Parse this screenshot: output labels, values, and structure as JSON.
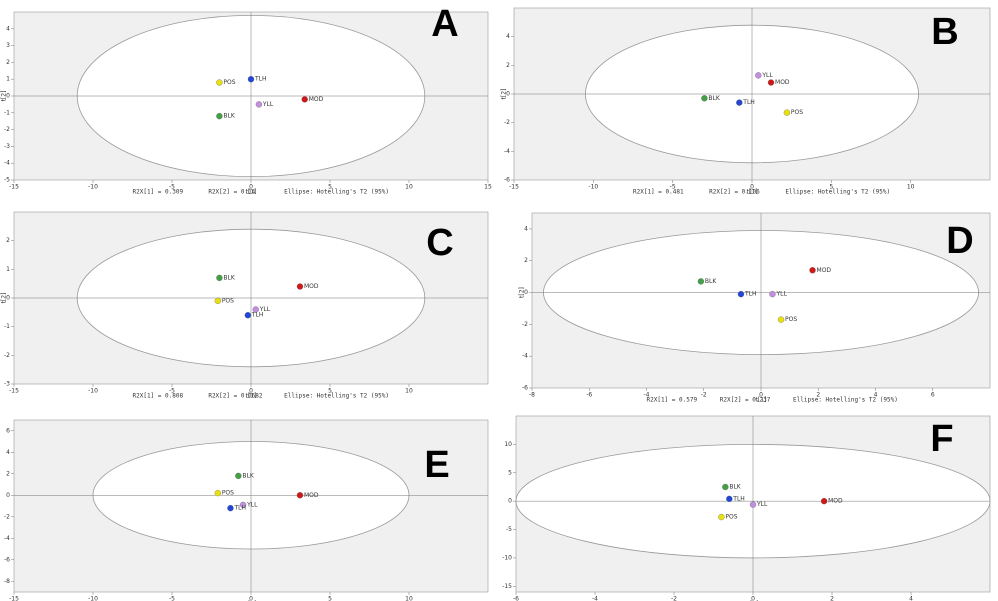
{
  "chart_data": [
    {
      "type": "scatter",
      "label": "A",
      "x_label": "t[1]",
      "y_label": "t[2]",
      "annotations": [
        "R2X[1] = 0.309",
        "R2X[2] = 0.14",
        "Ellipse: Hotelling's T2 (95%)"
      ],
      "xlim": [
        -15,
        15
      ],
      "xticks": [
        -15,
        -10,
        -5,
        0,
        5,
        10,
        15
      ],
      "ylim": [
        -5,
        5
      ],
      "yticks": [
        -5,
        -4,
        -3,
        -2,
        -1,
        0,
        1,
        2,
        3,
        4
      ],
      "ellipse_radii": [
        11,
        4.8
      ],
      "grid": false,
      "series": [
        {
          "name": "POS",
          "color": "#e8e010",
          "x": [
            -2
          ],
          "values": [
            0.8
          ]
        },
        {
          "name": "TLH",
          "color": "#2246d8",
          "x": [
            0
          ],
          "values": [
            1.0
          ]
        },
        {
          "name": "MOD",
          "color": "#d01818",
          "x": [
            3.4
          ],
          "values": [
            -0.2
          ]
        },
        {
          "name": "YLL",
          "color": "#c28fe0",
          "x": [
            0.5
          ],
          "values": [
            -0.5
          ]
        },
        {
          "name": "BLK",
          "color": "#44a044",
          "x": [
            -2
          ],
          "values": [
            -1.2
          ]
        }
      ]
    },
    {
      "type": "scatter",
      "label": "B",
      "x_label": "t[1]",
      "y_label": "t[2]",
      "annotations": [
        "R2X[1] = 0.481",
        "R2X[2] = 0.106",
        "Ellipse: Hotelling's T2 (95%)"
      ],
      "xlim": [
        -15,
        15
      ],
      "xticks": [
        -15,
        -10,
        -5,
        0,
        5,
        10
      ],
      "ylim": [
        -6,
        6
      ],
      "yticks": [
        -6,
        -4,
        -2,
        0,
        2,
        4
      ],
      "ellipse_radii": [
        10.5,
        4.8
      ],
      "grid": false,
      "series": [
        {
          "name": "YLL",
          "color": "#c28fe0",
          "x": [
            0.4
          ],
          "values": [
            1.3
          ]
        },
        {
          "name": "MOD",
          "color": "#d01818",
          "x": [
            1.2
          ],
          "values": [
            0.8
          ]
        },
        {
          "name": "BLK",
          "color": "#44a044",
          "x": [
            -3
          ],
          "values": [
            -0.3
          ]
        },
        {
          "name": "TLH",
          "color": "#2246d8",
          "x": [
            -0.8
          ],
          "values": [
            -0.6
          ]
        },
        {
          "name": "POS",
          "color": "#e8e010",
          "x": [
            2.2
          ],
          "values": [
            -1.3
          ]
        }
      ]
    },
    {
      "type": "scatter",
      "label": "C",
      "x_label": "t[1]",
      "y_label": "t[2]",
      "annotations": [
        "R2X[1] = 0.808",
        "R2X[2] = 0.0682",
        "Ellipse: Hotelling's T2 (95%)"
      ],
      "xlim": [
        -15,
        15
      ],
      "xticks": [
        -15,
        -10,
        -5,
        0,
        5,
        10
      ],
      "ylim": [
        -3,
        3
      ],
      "yticks": [
        -3,
        -2,
        -1,
        0,
        1,
        2
      ],
      "ellipse_radii": [
        11,
        2.4
      ],
      "grid": false,
      "series": [
        {
          "name": "BLK",
          "color": "#44a044",
          "x": [
            -2
          ],
          "values": [
            0.7
          ]
        },
        {
          "name": "MOD",
          "color": "#d01818",
          "x": [
            3.1
          ],
          "values": [
            0.4
          ]
        },
        {
          "name": "POS",
          "color": "#e8e010",
          "x": [
            -2.1
          ],
          "values": [
            -0.1
          ]
        },
        {
          "name": "YLL",
          "color": "#c28fe0",
          "x": [
            0.3
          ],
          "values": [
            -0.4
          ]
        },
        {
          "name": "TLH",
          "color": "#2246d8",
          "x": [
            -0.2
          ],
          "values": [
            -0.6
          ]
        }
      ]
    },
    {
      "type": "scatter",
      "label": "D",
      "x_label": "t[1]",
      "y_label": "t[2]",
      "annotations": [
        "R2X[1] = 0.579",
        "R2X[2] = 0.237",
        "Ellipse: Hotelling's T2 (95%)"
      ],
      "xlim": [
        -8,
        8
      ],
      "xticks": [
        -8,
        -6,
        -4,
        -2,
        0,
        2,
        4,
        6
      ],
      "ylim": [
        -6,
        5
      ],
      "yticks": [
        -6,
        -4,
        -2,
        0,
        2,
        4
      ],
      "ellipse_radii": [
        7.6,
        3.9
      ],
      "grid": false,
      "series": [
        {
          "name": "MOD",
          "color": "#d01818",
          "x": [
            1.8
          ],
          "values": [
            1.4
          ]
        },
        {
          "name": "BLK",
          "color": "#44a044",
          "x": [
            -2.1
          ],
          "values": [
            0.7
          ]
        },
        {
          "name": "TLH",
          "color": "#2246d8",
          "x": [
            -0.7
          ],
          "values": [
            -0.1
          ]
        },
        {
          "name": "YLL",
          "color": "#c28fe0",
          "x": [
            0.4
          ],
          "values": [
            -0.1
          ]
        },
        {
          "name": "POS",
          "color": "#e8e010",
          "x": [
            0.7
          ],
          "values": [
            -1.7
          ]
        }
      ]
    },
    {
      "type": "scatter",
      "label": "E",
      "x_label": "t[1]",
      "xlim": [
        -15,
        15
      ],
      "xticks": [
        -15,
        -10,
        -5,
        0,
        5,
        10
      ],
      "ylim": [
        -9,
        7
      ],
      "yticks": [
        -8,
        -6,
        -4,
        -2,
        0,
        2,
        4,
        6
      ],
      "ellipse_radii": [
        10,
        5
      ],
      "grid": false,
      "series": [
        {
          "name": "BLK",
          "color": "#44a044",
          "x": [
            -0.8
          ],
          "values": [
            1.8
          ]
        },
        {
          "name": "POS",
          "color": "#e8e010",
          "x": [
            -2.1
          ],
          "values": [
            0.2
          ]
        },
        {
          "name": "MOD",
          "color": "#d01818",
          "x": [
            3.1
          ],
          "values": [
            0
          ]
        },
        {
          "name": "YLL",
          "color": "#c28fe0",
          "x": [
            -0.5
          ],
          "values": [
            -0.9
          ]
        },
        {
          "name": "TLH",
          "color": "#2246d8",
          "x": [
            -1.3
          ],
          "values": [
            -1.2
          ]
        }
      ]
    },
    {
      "type": "scatter",
      "label": "F",
      "x_label": "t[1]",
      "xlim": [
        -6,
        6
      ],
      "xticks": [
        -6,
        -4,
        -2,
        0,
        2,
        4
      ],
      "ylim": [
        -16,
        15
      ],
      "yticks": [
        -15,
        -10,
        -5,
        0,
        5,
        10
      ],
      "ellipse_radii": [
        6,
        10
      ],
      "grid": false,
      "series": [
        {
          "name": "BLK",
          "color": "#44a044",
          "x": [
            -0.7
          ],
          "values": [
            2.5
          ]
        },
        {
          "name": "TLH",
          "color": "#2246d8",
          "x": [
            -0.6
          ],
          "values": [
            0.4
          ]
        },
        {
          "name": "YLL",
          "color": "#c28fe0",
          "x": [
            0
          ],
          "values": [
            -0.6
          ]
        },
        {
          "name": "MOD",
          "color": "#d01818",
          "x": [
            1.8
          ],
          "values": [
            0
          ]
        },
        {
          "name": "POS",
          "color": "#e8e010",
          "x": [
            -0.8
          ],
          "values": [
            -2.8
          ]
        }
      ]
    }
  ]
}
